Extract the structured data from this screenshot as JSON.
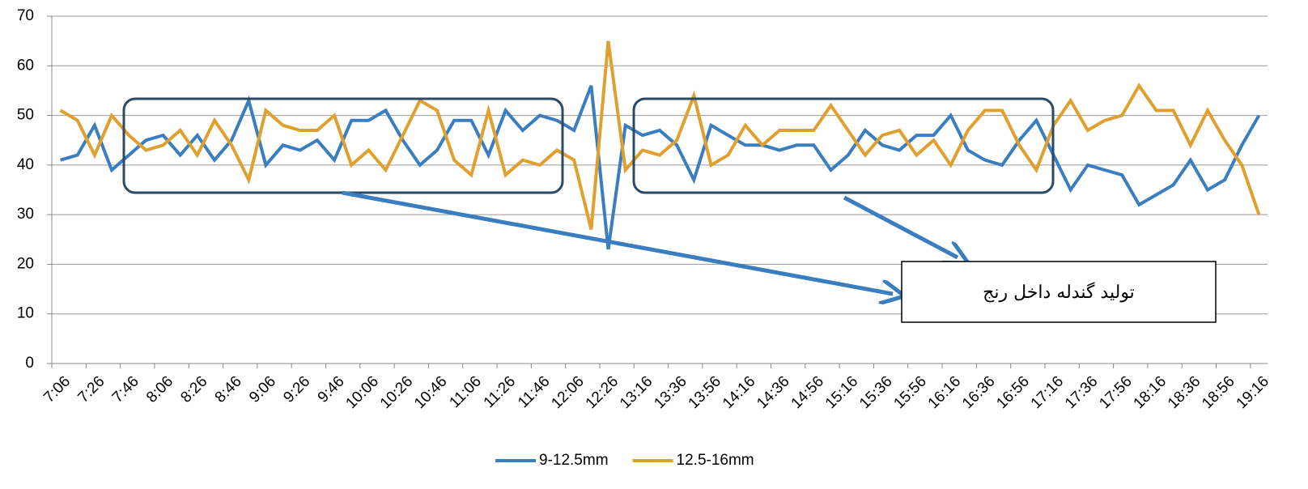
{
  "chart_data": {
    "type": "line",
    "categories": [
      "7:06",
      null,
      "7:26",
      null,
      "7:46",
      null,
      "8:06",
      null,
      "8:26",
      null,
      "8:46",
      null,
      "9:06",
      null,
      "9:26",
      null,
      "9:46",
      null,
      "10:06",
      null,
      "10:26",
      null,
      "10:46",
      null,
      "11:06",
      null,
      "11:26",
      null,
      "11:46",
      null,
      "12:06",
      null,
      "12:26",
      null,
      "13:16",
      null,
      "13:36",
      null,
      "13:56",
      null,
      "14:16",
      null,
      "14:36",
      null,
      "14:56",
      null,
      "15:16",
      null,
      "15:36",
      null,
      "15:56",
      null,
      "16:16",
      null,
      "16:36",
      null,
      "16:56",
      null,
      "17:16",
      null,
      "17:36",
      null,
      "17:56",
      null,
      "18:16",
      null,
      "18:36",
      null,
      "18:56",
      null,
      "19:16"
    ],
    "series": [
      {
        "name": "9-12.5mm",
        "color": "#3a7ebf",
        "values": [
          41,
          42,
          48,
          39,
          42,
          45,
          46,
          42,
          46,
          41,
          45,
          53,
          40,
          44,
          43,
          45,
          41,
          49,
          49,
          51,
          45,
          40,
          43,
          49,
          49,
          42,
          51,
          47,
          50,
          49,
          47,
          56,
          23,
          48,
          46,
          47,
          44,
          37,
          48,
          46,
          44,
          44,
          43,
          44,
          44,
          39,
          42,
          47,
          44,
          43,
          46,
          46,
          50,
          43,
          41,
          40,
          45,
          49,
          42,
          35,
          40,
          39,
          38,
          32,
          34,
          36,
          41,
          35,
          37,
          44,
          50
        ]
      },
      {
        "name": "12.5-16mm",
        "color": "#e0a030",
        "values": [
          51,
          49,
          42,
          50,
          46,
          43,
          44,
          47,
          42,
          49,
          44,
          37,
          51,
          48,
          47,
          47,
          50,
          40,
          43,
          39,
          46,
          53,
          51,
          41,
          38,
          51,
          38,
          41,
          40,
          43,
          41,
          27,
          65,
          39,
          43,
          42,
          45,
          54,
          40,
          42,
          48,
          44,
          47,
          47,
          47,
          52,
          47,
          42,
          46,
          47,
          42,
          45,
          40,
          47,
          51,
          51,
          44,
          39,
          48,
          53,
          47,
          49,
          50,
          56,
          51,
          51,
          44,
          51,
          45,
          40,
          30
        ]
      }
    ],
    "ylim": [
      0,
      70
    ],
    "yticks": [
      0,
      10,
      20,
      30,
      40,
      50,
      60,
      70
    ],
    "grid": true,
    "legend": "bottom",
    "annotation": "تولید گندله داخل رنج"
  }
}
